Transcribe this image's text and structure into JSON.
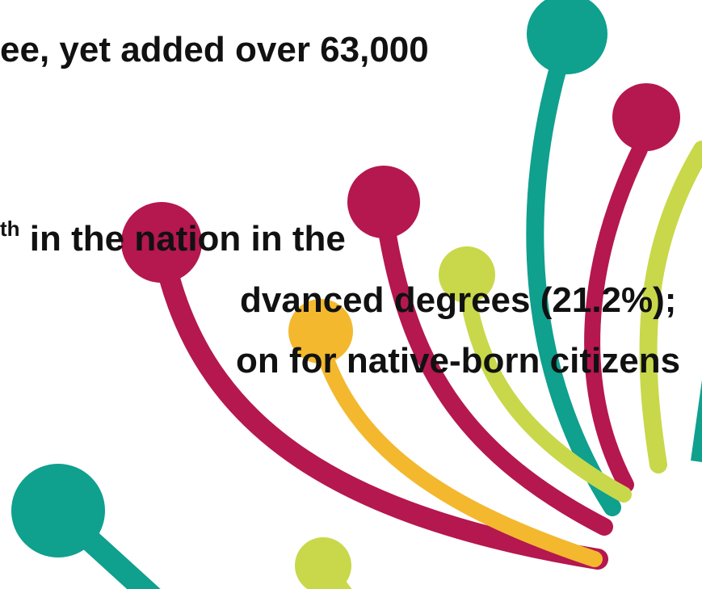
{
  "text": {
    "line_1": "ee, yet added over 63,000",
    "line_2": {
      "sup": "th",
      "rest": " in the nation in the"
    },
    "line_3": "dvanced degrees (21.2%);",
    "line_4": "on for native-born citizens"
  }
}
